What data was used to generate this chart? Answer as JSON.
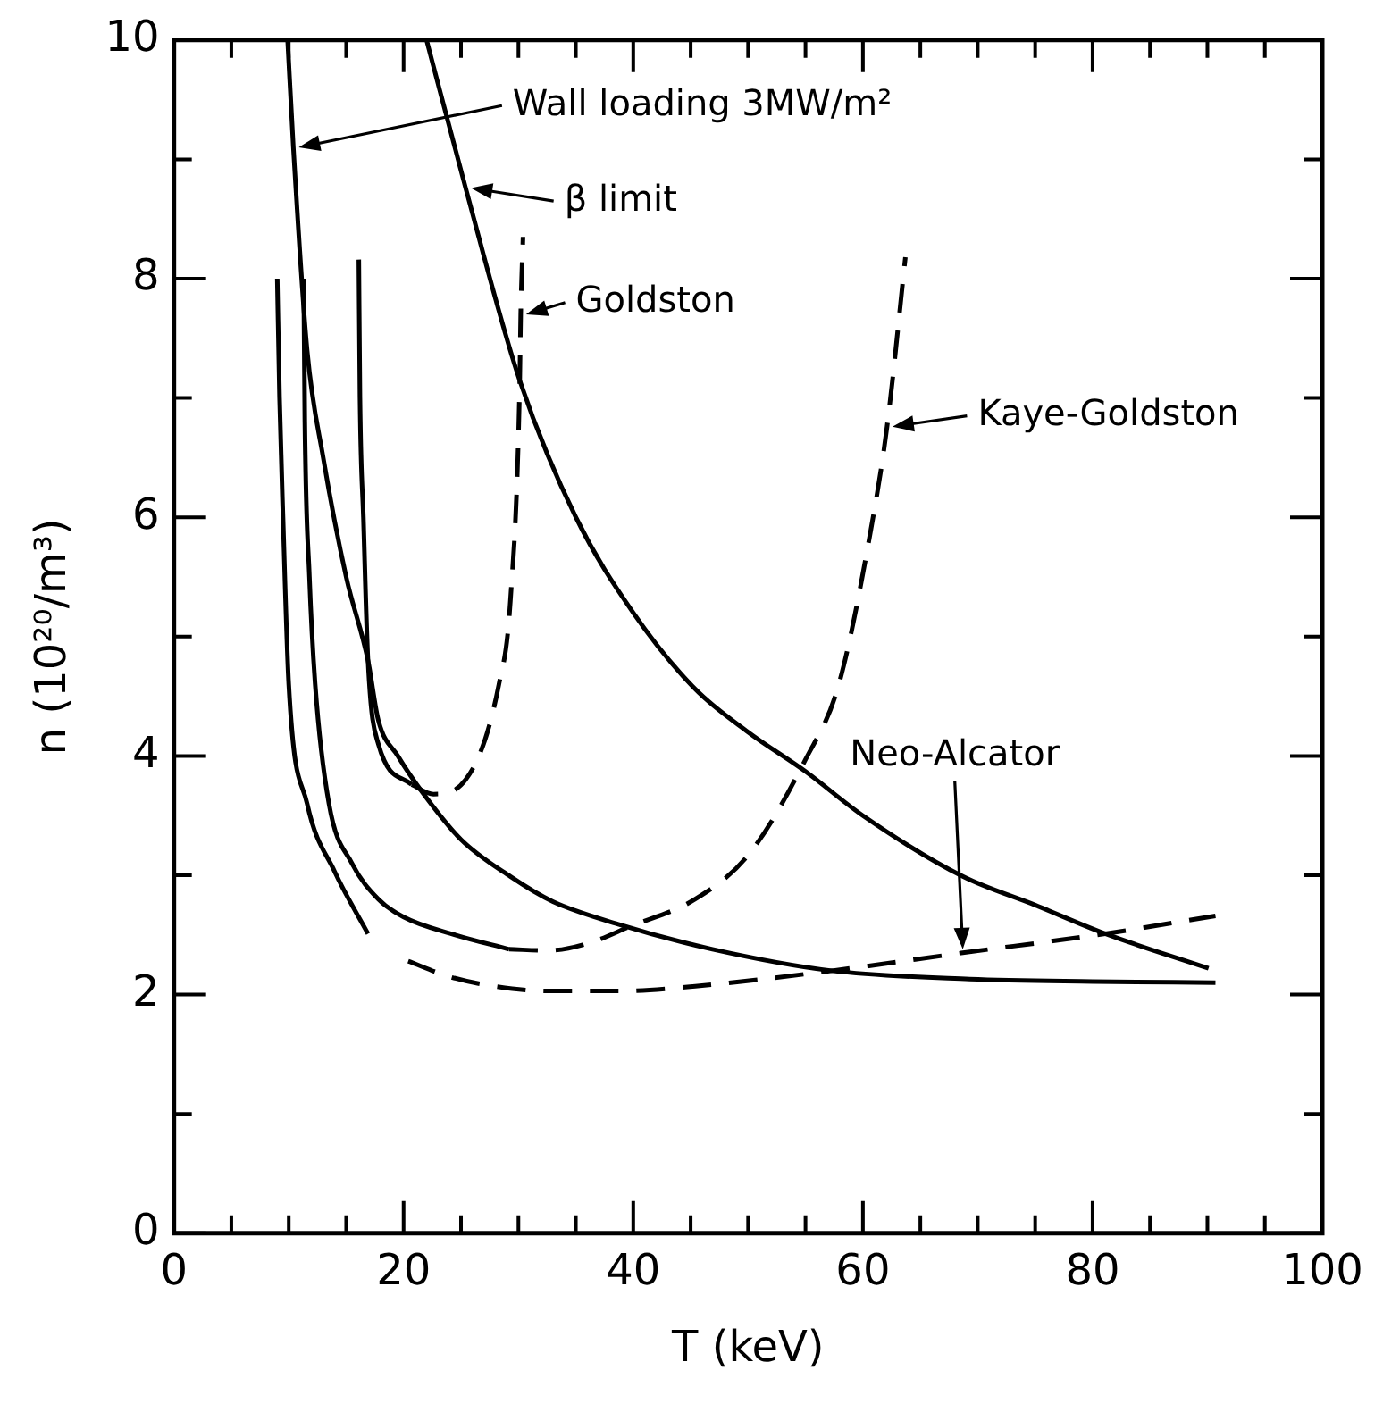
{
  "chart_data": {
    "type": "line",
    "xlabel": "T (keV)",
    "ylabel": "n (10²⁰/m³)",
    "xlim": [
      0,
      100
    ],
    "ylim": [
      0,
      10
    ],
    "xticks": [
      0,
      {
        "value": 5,
        "label": null
      },
      {
        "value": 10,
        "label": null
      },
      {
        "value": 15,
        "label": null
      },
      20,
      {
        "value": 25,
        "label": null
      },
      {
        "value": 30,
        "label": null
      },
      {
        "value": 35,
        "label": null
      },
      40,
      {
        "value": 45,
        "label": null
      },
      {
        "value": 50,
        "label": null
      },
      {
        "value": 55,
        "label": null
      },
      60,
      {
        "value": 65,
        "label": null
      },
      {
        "value": 70,
        "label": null
      },
      {
        "value": 75,
        "label": null
      },
      80,
      {
        "value": 85,
        "label": null
      },
      {
        "value": 90,
        "label": null
      },
      {
        "value": 95,
        "label": null
      },
      100
    ],
    "yticks": [
      0,
      {
        "value": 1,
        "label": null
      },
      2,
      {
        "value": 3,
        "label": null
      },
      4,
      {
        "value": 5,
        "label": null
      },
      6,
      {
        "value": 7,
        "label": null
      },
      8,
      {
        "value": 9,
        "label": null
      },
      10
    ],
    "grid": false,
    "marker": "none",
    "legend": false,
    "annotations": [
      "Wall loading 3MW/m²",
      {
        "text": "β limit",
        "x": 25.4,
        "y": 8.76
      },
      {
        "text": "Goldston",
        "x": 30.2,
        "y": 7.7
      },
      {
        "text": "Kaye-Goldston",
        "x": 62.1,
        "y": 6.76
      },
      "Neo-Alcator"
    ],
    "series": [
      {
        "color": "#000000",
        "line_style": "solid",
        "x": [
          9.9,
          10.4,
          11.6,
          13,
          15,
          16.9,
          17.8,
          19.5,
          21.6,
          25,
          29.3,
          33,
          38.7,
          46.9,
          57.3,
          69.3,
          80,
          90.7
        ],
        "values": [
          10,
          9.1,
          7.4,
          6.5,
          5.5,
          4.8,
          4.3,
          4.0,
          3.7,
          3.3,
          2.99,
          2.78,
          2.59,
          2.38,
          2.2,
          2.13,
          2.11,
          2.1
        ]
      },
      {
        "color": "#000000",
        "line_style": "solid",
        "x": [
          22,
          25.4,
          30.1,
          35,
          40,
          45.4,
          50,
          55,
          60,
          68.7,
          75,
          81.1,
          90.1
        ],
        "values": [
          10,
          8.76,
          7.15,
          6.0,
          5.2,
          4.56,
          4.2,
          3.87,
          3.5,
          2.99,
          2.75,
          2.51,
          2.22
        ]
      },
      {
        "color": "#000000",
        "line_style": "solid",
        "x": [
          9,
          9.2,
          9.5,
          10,
          11.6,
          14,
          16.9
        ],
        "values": [
          8,
          7,
          6,
          4.6,
          3.6,
          3.03,
          2.51
        ]
      },
      {
        "color": "#000000",
        "line_style": "solid",
        "x": [
          11.3,
          11.4,
          11.8,
          12.3,
          13.5,
          15.5,
          17.8,
          20,
          24.5,
          29.2
        ],
        "values": [
          8,
          6.8,
          5.5,
          4.6,
          3.6,
          3.1,
          2.8,
          2.65,
          2.5,
          2.38
        ]
      },
      {
        "color": "#000000",
        "line_style": "dashed",
        "x": [
          29.2,
          32.6,
          36.4,
          39.7,
          45.4,
          50.1,
          55,
          57.9,
          60.7,
          62.1,
          63.7
        ],
        "values": [
          2.38,
          2.37,
          2.44,
          2.57,
          2.8,
          3.18,
          3.97,
          4.6,
          5.9,
          6.76,
          8.18
        ]
      },
      {
        "color": "#000000",
        "line_style": "solid",
        "x": [
          16.1,
          16.2,
          16.5,
          16.9,
          17.8,
          20.7
        ],
        "values": [
          8.16,
          7,
          6,
          4.8,
          4.1,
          3.76
        ]
      },
      {
        "color": "#000000",
        "line_style": "dashed",
        "x": [
          20.7,
          22.6,
          25.4,
          28.3,
          29.3,
          30.1,
          30.2,
          30.4
        ],
        "values": [
          3.76,
          3.68,
          3.8,
          4.6,
          5.3,
          7.06,
          7.7,
          8.35
        ]
      },
      {
        "color": "#000000",
        "line_style": "dashed",
        "x": [
          20.4,
          24,
          27.9,
          32.6,
          38.7,
          45.4,
          57.3,
          68.7,
          81.1,
          90.7
        ],
        "values": [
          2.28,
          2.15,
          2.07,
          2.03,
          2.03,
          2.07,
          2.2,
          2.35,
          2.51,
          2.66
        ]
      }
    ]
  }
}
